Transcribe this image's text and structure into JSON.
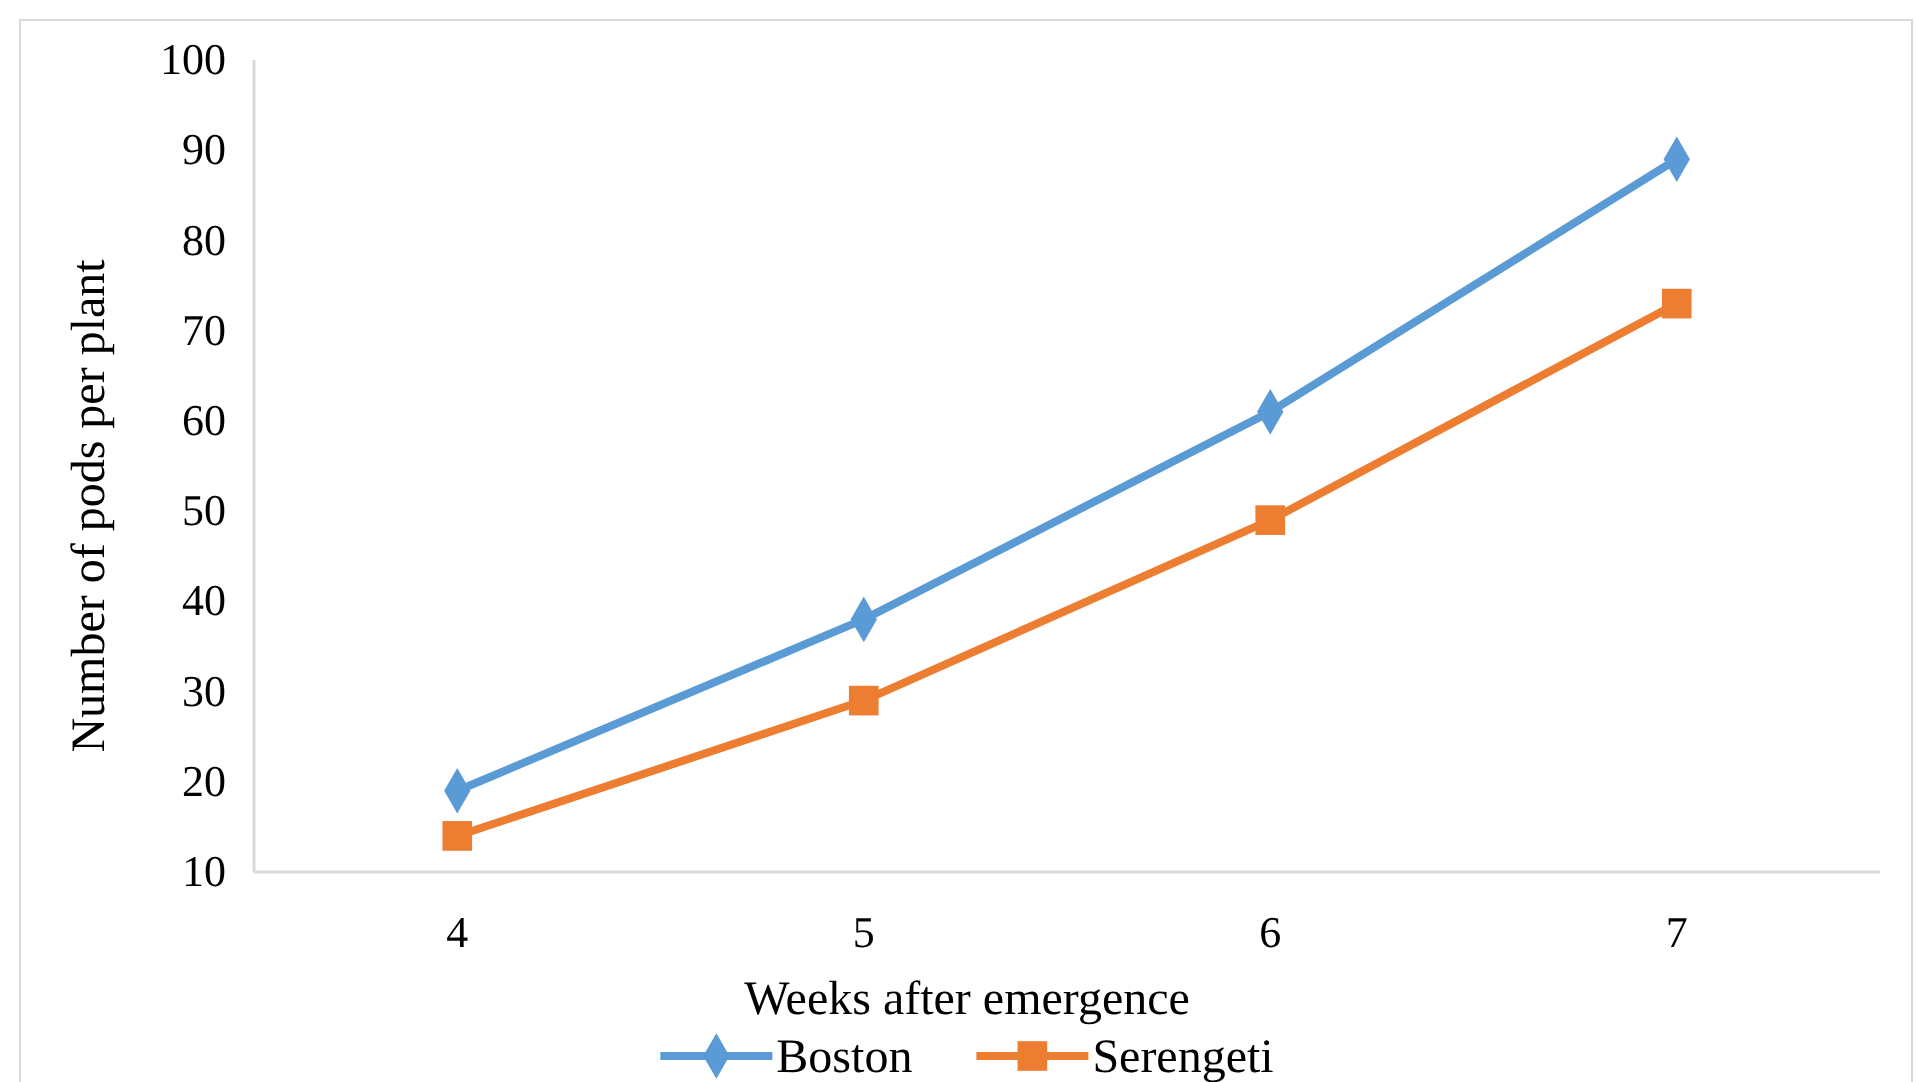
{
  "chart_data": {
    "type": "line",
    "xlabel": "Weeks after emergence",
    "ylabel": "Number of pods per plant",
    "categories": [
      "4",
      "5",
      "6",
      "7"
    ],
    "series": [
      {
        "name": "Boston",
        "color": "#5b9bd5",
        "marker": "diamond",
        "values": [
          19,
          38,
          61,
          89
        ]
      },
      {
        "name": "Serengeti",
        "color": "#ed7d31",
        "marker": "square",
        "values": [
          14,
          29,
          49,
          73
        ]
      }
    ],
    "ylim": [
      10,
      100
    ],
    "yticks": [
      10,
      20,
      30,
      40,
      50,
      60,
      70,
      80,
      90,
      100
    ],
    "grid": false,
    "legend": "bottom"
  }
}
